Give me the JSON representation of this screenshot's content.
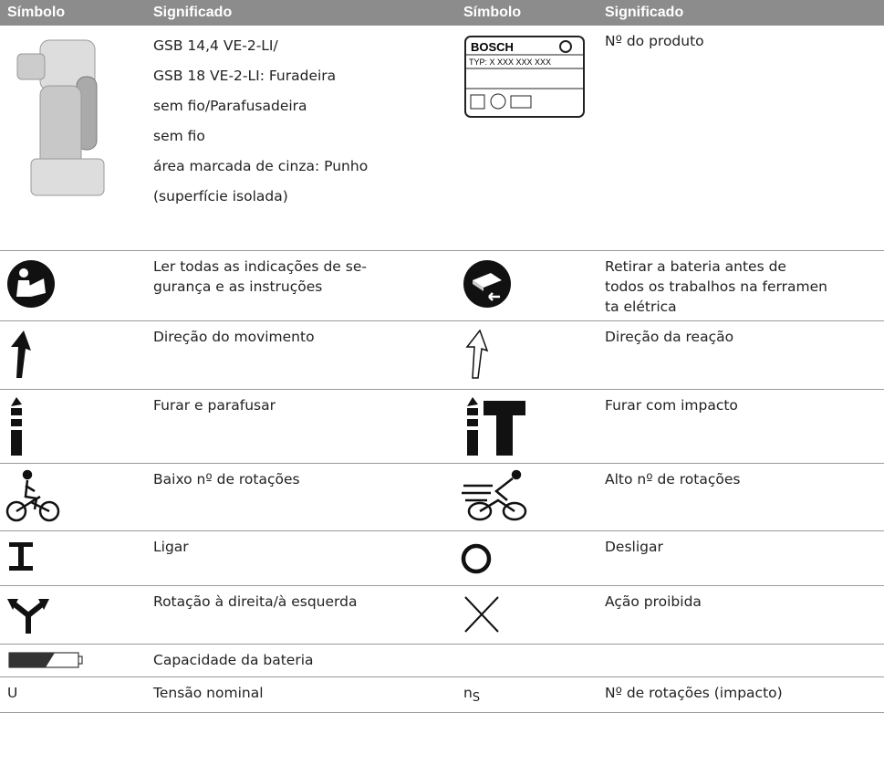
{
  "header": [
    "Símbolo",
    "Significado",
    "Símbolo",
    "Significado"
  ],
  "rows": [
    {
      "left_meaning": [
        "GSB 14,4 VE-2-LI/",
        "GSB 18 VE-2-LI: Furadeira",
        "sem fio/Parafusadeira",
        "sem fio",
        "área marcada de cinza: Punho",
        "(superfície isolada)"
      ],
      "right_symbol": {
        "brand": "BOSCH",
        "type_line": "TYP:  X XXX XXX XXX"
      },
      "right_meaning": [
        "Nº do produto"
      ]
    },
    {
      "left_meaning": [
        "Ler todas as indicações de se-",
        "gurança e as instruções"
      ],
      "right_meaning": [
        "Retirar a bateria antes de",
        "todos os trabalhos na ferramen",
        "ta elétrica"
      ]
    },
    {
      "left_meaning": [
        "Direção do movimento"
      ],
      "right_meaning": [
        "Direção da reação"
      ]
    },
    {
      "left_meaning": [
        "Furar e parafusar"
      ],
      "right_meaning": [
        "Furar com impacto"
      ]
    },
    {
      "left_meaning": [
        "Baixo nº de rotações"
      ],
      "right_meaning": [
        "Alto nº de rotações"
      ]
    },
    {
      "left_meaning": [
        "Ligar"
      ],
      "right_meaning": [
        "Desligar"
      ]
    },
    {
      "left_meaning": [
        "Rotação à direita/à esquerda"
      ],
      "right_meaning": [
        "Ação proibida"
      ]
    },
    {
      "left_meaning": [
        "Capacidade da bateria"
      ]
    },
    {
      "left_symbol": "U",
      "left_meaning": [
        "Tensão nominal"
      ],
      "right_symbol": {
        "text": "n",
        "sub": "S"
      },
      "right_meaning": [
        "Nº de rotações (impacto)"
      ]
    }
  ]
}
